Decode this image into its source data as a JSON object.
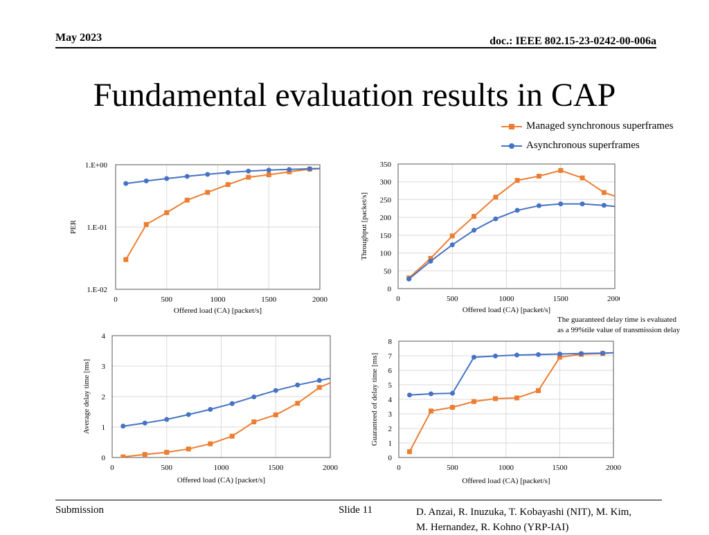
{
  "header": {
    "date": "May 2023",
    "doc": "doc.: IEEE 802.15-23-0242-00-006a"
  },
  "title": "Fundamental evaluation results in CAP",
  "legend": [
    {
      "label": "Managed synchronous superframes",
      "color": "#ED7D31",
      "marker": "square"
    },
    {
      "label": "Asynchronous superframes",
      "color": "#4472C4",
      "marker": "circle"
    }
  ],
  "note": [
    "The guaranteed delay time is evaluated",
    "as a 99%tile value of transmission delay"
  ],
  "footer": {
    "left": "Submission",
    "slide": "Slide 11",
    "authors": [
      "D. Anzai, R. Inuzuka, T. Kobayashi (NIT), M. Kim,",
      "M. Hernandez, R. Kohno (YRP-IAI)"
    ]
  },
  "chart_data": [
    {
      "type": "line",
      "xlabel": "Offered load (CA) [packet/s]",
      "ylabel": "PER",
      "yscale": "log",
      "xlim": [
        0,
        2000
      ],
      "ylim": [
        0.01,
        1
      ],
      "xticks": [
        "0",
        "500",
        "1000",
        "1500",
        "2000"
      ],
      "yticks": [
        "1.E-02",
        "1.E-01",
        "1.E+00"
      ],
      "grid": true,
      "series": [
        {
          "name": "Managed synchronous superframes",
          "color": "#ED7D31",
          "marker": "square",
          "x": [
            100,
            300,
            500,
            700,
            900,
            1100,
            1300,
            1500,
            1700,
            1900,
            2000
          ],
          "y": [
            0.03,
            0.11,
            0.17,
            0.27,
            0.36,
            0.48,
            0.63,
            0.69,
            0.77,
            0.85,
            0.86
          ]
        },
        {
          "name": "Asynchronous superframes",
          "color": "#4472C4",
          "marker": "circle",
          "x": [
            100,
            300,
            500,
            700,
            900,
            1100,
            1300,
            1500,
            1700,
            1900,
            2000
          ],
          "y": [
            0.5,
            0.55,
            0.6,
            0.65,
            0.7,
            0.75,
            0.79,
            0.82,
            0.84,
            0.86,
            0.87
          ]
        }
      ]
    },
    {
      "type": "line",
      "xlabel": "Offered load (CA) [packet/s]",
      "ylabel": "Throughput [packet/s]",
      "xlim": [
        0,
        2000
      ],
      "ylim": [
        0,
        350
      ],
      "xticks": [
        "0",
        "500",
        "1000",
        "1500",
        "2000"
      ],
      "yticks": [
        "0",
        "50",
        "100",
        "150",
        "200",
        "250",
        "300",
        "350"
      ],
      "grid": true,
      "series": [
        {
          "name": "Managed synchronous superframes",
          "color": "#ED7D31",
          "marker": "square",
          "x": [
            100,
            300,
            500,
            700,
            900,
            1100,
            1300,
            1500,
            1700,
            1900,
            2000
          ],
          "y": [
            30,
            85,
            148,
            203,
            257,
            304,
            316,
            332,
            311,
            270,
            260
          ]
        },
        {
          "name": "Asynchronous superframes",
          "color": "#4472C4",
          "marker": "circle",
          "x": [
            100,
            300,
            500,
            700,
            900,
            1100,
            1300,
            1500,
            1700,
            1900,
            2000
          ],
          "y": [
            27,
            77,
            123,
            164,
            196,
            220,
            233,
            238,
            238,
            234,
            231
          ]
        }
      ]
    },
    {
      "type": "line",
      "xlabel": "Offered load (CA) [packet/s]",
      "ylabel": "Average delay time [ms]",
      "xlim": [
        0,
        2000
      ],
      "ylim": [
        0,
        4
      ],
      "xticks": [
        "0",
        "500",
        "1000",
        "1500",
        "2000"
      ],
      "yticks": [
        "0",
        "1",
        "2",
        "3",
        "4"
      ],
      "grid": true,
      "series": [
        {
          "name": "Managed synchronous superframes",
          "color": "#ED7D31",
          "marker": "square",
          "x": [
            100,
            300,
            500,
            700,
            900,
            1100,
            1300,
            1500,
            1700,
            1900,
            2000
          ],
          "y": [
            0.02,
            0.1,
            0.17,
            0.28,
            0.45,
            0.7,
            1.17,
            1.4,
            1.78,
            2.3,
            2.45
          ]
        },
        {
          "name": "Asynchronous superframes",
          "color": "#4472C4",
          "marker": "circle",
          "x": [
            100,
            300,
            500,
            700,
            900,
            1100,
            1300,
            1500,
            1700,
            1900,
            2000
          ],
          "y": [
            1.03,
            1.13,
            1.25,
            1.41,
            1.58,
            1.77,
            1.99,
            2.2,
            2.38,
            2.53,
            2.6
          ]
        }
      ]
    },
    {
      "type": "line",
      "xlabel": "Offered load (CA) [packet/s]",
      "ylabel": "Guaranteed of delay time [ms]",
      "xlim": [
        0,
        2000
      ],
      "ylim": [
        0,
        8
      ],
      "xticks": [
        "0",
        "500",
        "1000",
        "1500",
        "2000"
      ],
      "yticks": [
        "0",
        "1",
        "2",
        "3",
        "4",
        "5",
        "6",
        "7",
        "8"
      ],
      "grid": true,
      "series": [
        {
          "name": "Managed synchronous superframes",
          "color": "#ED7D31",
          "marker": "square",
          "x": [
            100,
            300,
            500,
            700,
            900,
            1100,
            1300,
            1500,
            1700,
            1900,
            2000
          ],
          "y": [
            0.4,
            3.2,
            3.45,
            3.85,
            4.05,
            4.1,
            4.6,
            6.9,
            7.1,
            7.15,
            7.2
          ]
        },
        {
          "name": "Asynchronous superframes",
          "color": "#4472C4",
          "marker": "circle",
          "x": [
            100,
            300,
            500,
            700,
            900,
            1100,
            1300,
            1500,
            1700,
            1900,
            2000
          ],
          "y": [
            4.3,
            4.38,
            4.42,
            6.9,
            6.98,
            7.05,
            7.08,
            7.12,
            7.15,
            7.18,
            7.2
          ]
        }
      ]
    }
  ]
}
